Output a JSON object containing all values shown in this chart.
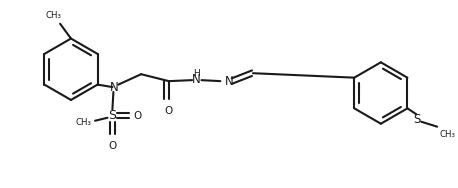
{
  "bg_color": "#ffffff",
  "line_color": "#1a1a1a",
  "line_width": 1.5,
  "figsize": [
    4.58,
    1.88
  ],
  "dpi": 100,
  "xlim": [
    0,
    9.16
  ],
  "ylim": [
    0,
    3.76
  ]
}
